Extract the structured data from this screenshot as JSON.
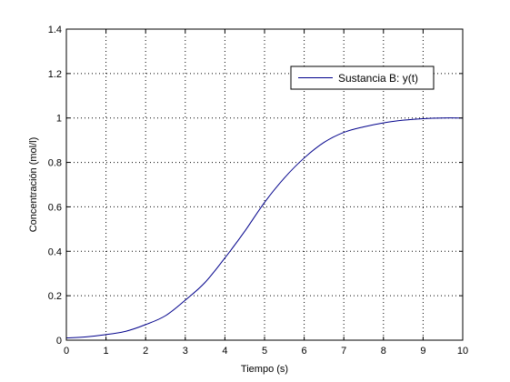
{
  "chart_data": {
    "type": "line",
    "title": "",
    "xlabel": "Tiempo (s)",
    "ylabel": "Concentración (mol/l)",
    "xlim": [
      0,
      10
    ],
    "ylim": [
      0,
      1.4
    ],
    "xticks": [
      0,
      1,
      2,
      3,
      4,
      5,
      6,
      7,
      8,
      9,
      10
    ],
    "yticks": [
      0,
      0.2,
      0.4,
      0.6,
      0.8,
      1,
      1.2,
      1.4
    ],
    "xtick_labels": [
      "0",
      "1",
      "2",
      "3",
      "4",
      "5",
      "6",
      "7",
      "8",
      "9",
      "10"
    ],
    "ytick_labels": [
      "0",
      "0.2",
      "0.4",
      "0.6",
      "0.8",
      "1",
      "1.2",
      "1.4"
    ],
    "grid": true,
    "grid_style": "dotted",
    "legend": "top-right",
    "series": [
      {
        "name": "Sustancia B: y(t)",
        "color": "#00008b",
        "x": [
          0,
          0.5,
          1,
          1.5,
          2,
          2.5,
          3,
          3.5,
          4,
          4.5,
          5,
          5.5,
          6,
          6.5,
          7,
          7.5,
          8,
          8.5,
          9,
          9.5,
          10
        ],
        "y": [
          0.01,
          0.015,
          0.025,
          0.04,
          0.07,
          0.11,
          0.18,
          0.26,
          0.37,
          0.49,
          0.62,
          0.73,
          0.82,
          0.89,
          0.935,
          0.96,
          0.978,
          0.99,
          0.997,
          1.0,
          1.0
        ]
      }
    ]
  }
}
